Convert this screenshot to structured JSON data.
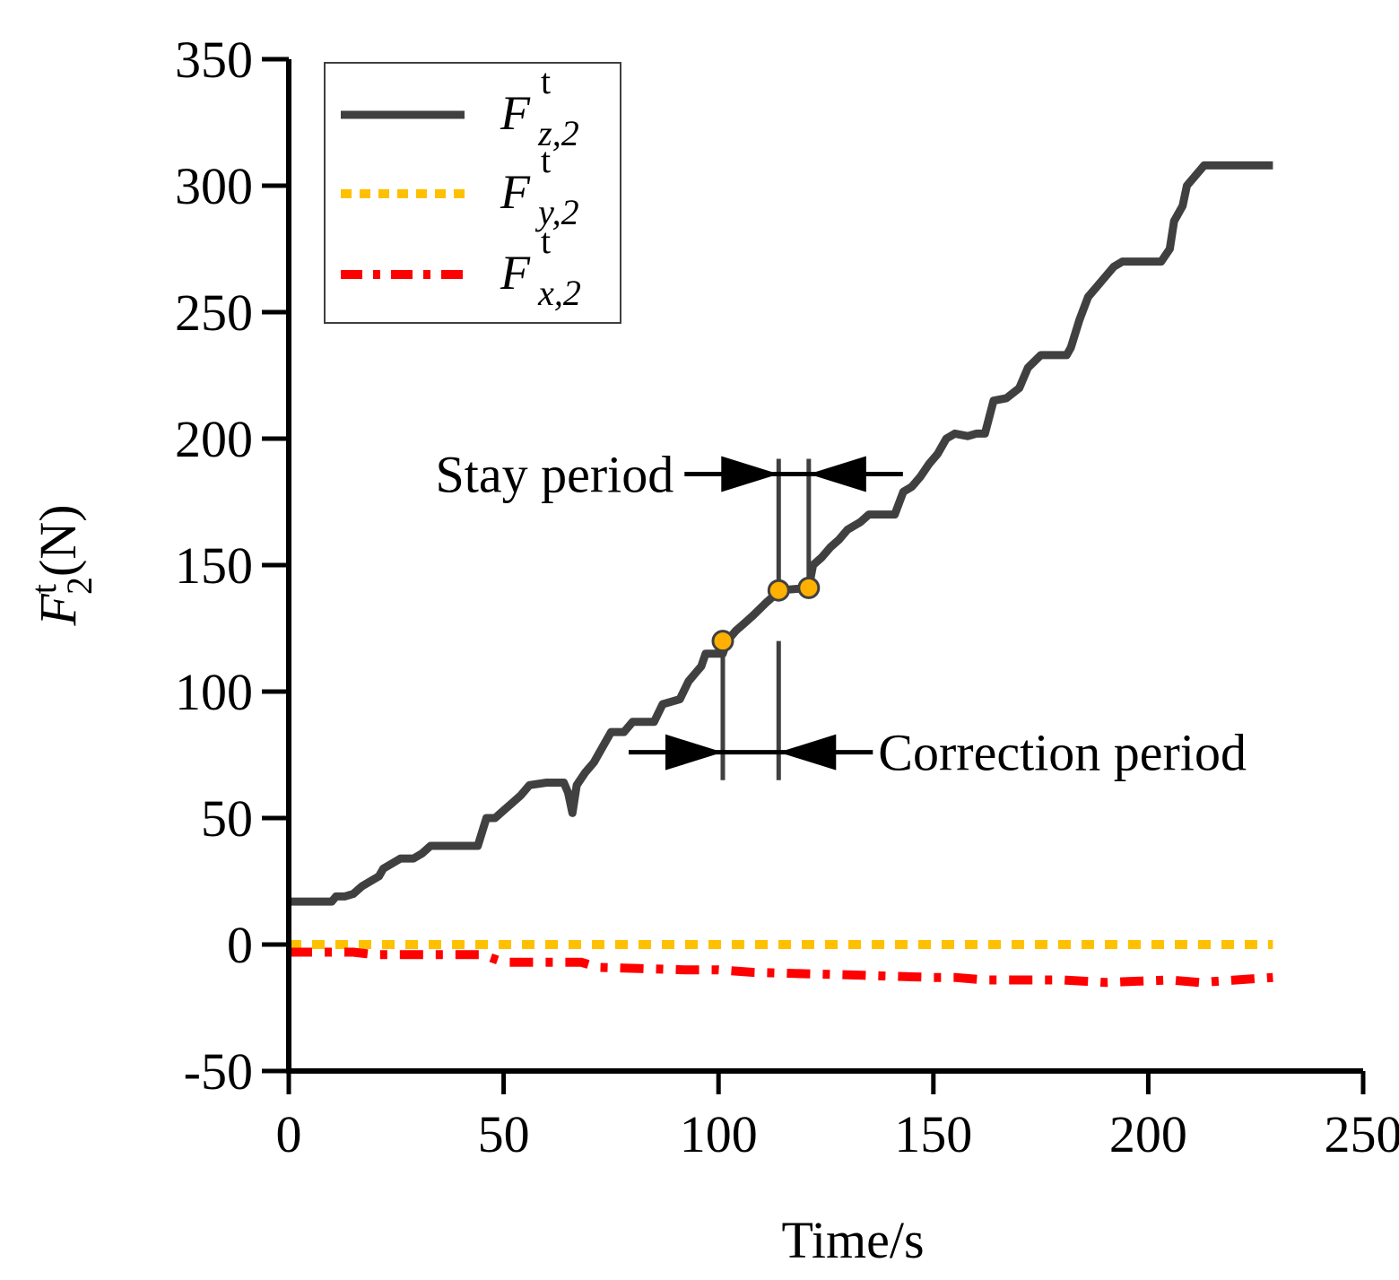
{
  "chart_data": {
    "type": "line",
    "xlabel": "Time/s",
    "ylabel": {
      "main": "F",
      "sup": "t",
      "sub": "2",
      "unit": "(N)"
    },
    "xlim": [
      0,
      250
    ],
    "ylim": [
      -50,
      350
    ],
    "xticks": [
      0,
      50,
      100,
      150,
      200,
      250
    ],
    "yticks": [
      -50,
      0,
      50,
      100,
      150,
      200,
      250,
      300,
      350
    ],
    "grid": false,
    "legend_position": "top-left",
    "series": [
      {
        "name": "F_z,2",
        "label": {
          "main": "F",
          "sup": "t",
          "sub": "z,2"
        },
        "color": "#404040",
        "style": "solid",
        "points": [
          [
            0,
            17
          ],
          [
            10,
            17
          ],
          [
            11,
            19
          ],
          [
            13,
            19
          ],
          [
            15,
            20
          ],
          [
            17,
            23
          ],
          [
            19,
            25
          ],
          [
            21,
            27
          ],
          [
            22,
            30
          ],
          [
            24,
            32
          ],
          [
            26,
            34
          ],
          [
            29,
            34
          ],
          [
            31,
            36
          ],
          [
            33,
            39
          ],
          [
            44,
            39
          ],
          [
            46,
            50
          ],
          [
            48,
            50
          ],
          [
            50,
            53
          ],
          [
            52,
            56
          ],
          [
            54,
            59
          ],
          [
            56,
            63
          ],
          [
            60,
            64
          ],
          [
            64,
            64
          ],
          [
            65,
            60
          ],
          [
            66,
            52
          ],
          [
            67,
            63
          ],
          [
            69,
            68
          ],
          [
            71,
            72
          ],
          [
            73,
            78
          ],
          [
            75,
            84
          ],
          [
            78,
            84
          ],
          [
            80,
            88
          ],
          [
            85,
            88
          ],
          [
            87,
            95
          ],
          [
            89,
            96
          ],
          [
            91,
            97
          ],
          [
            93,
            104
          ],
          [
            95,
            108
          ],
          [
            96,
            110
          ],
          [
            97,
            115
          ],
          [
            101,
            115
          ],
          [
            102,
            120
          ],
          [
            104,
            124
          ],
          [
            106,
            127
          ],
          [
            108,
            130
          ],
          [
            111,
            135
          ],
          [
            113,
            138
          ],
          [
            114,
            140
          ],
          [
            121,
            141
          ],
          [
            122,
            150
          ],
          [
            124,
            153
          ],
          [
            126,
            157
          ],
          [
            128,
            160
          ],
          [
            130,
            164
          ],
          [
            133,
            167
          ],
          [
            135,
            170
          ],
          [
            141,
            170
          ],
          [
            143,
            179
          ],
          [
            145,
            181
          ],
          [
            147,
            185
          ],
          [
            149,
            190
          ],
          [
            151,
            194
          ],
          [
            153,
            200
          ],
          [
            155,
            202
          ],
          [
            158,
            201
          ],
          [
            160,
            202
          ],
          [
            162,
            202
          ],
          [
            164,
            215
          ],
          [
            167,
            216
          ],
          [
            170,
            220
          ],
          [
            172,
            228
          ],
          [
            175,
            233
          ],
          [
            181,
            233
          ],
          [
            182,
            236
          ],
          [
            184,
            247
          ],
          [
            186,
            256
          ],
          [
            188,
            260
          ],
          [
            190,
            264
          ],
          [
            192,
            268
          ],
          [
            194,
            270
          ],
          [
            203,
            270
          ],
          [
            205,
            275
          ],
          [
            206,
            286
          ],
          [
            208,
            292
          ],
          [
            209,
            300
          ],
          [
            211,
            304
          ],
          [
            213,
            308
          ],
          [
            221,
            308
          ],
          [
            229,
            308
          ]
        ]
      },
      {
        "name": "F_y,2",
        "label": {
          "main": "F",
          "sup": "t",
          "sub": "y,2"
        },
        "color": "#FFC000",
        "style": "dashed",
        "points": [
          [
            0,
            0
          ],
          [
            229,
            0
          ]
        ]
      },
      {
        "name": "F_x,2",
        "label": {
          "main": "F",
          "sup": "t",
          "sub": "x,2"
        },
        "color": "#FF0000",
        "style": "dashdot",
        "points": [
          [
            0,
            -3
          ],
          [
            15,
            -3
          ],
          [
            20,
            -4
          ],
          [
            45,
            -4
          ],
          [
            50,
            -7
          ],
          [
            68,
            -7
          ],
          [
            72,
            -9
          ],
          [
            92,
            -10
          ],
          [
            100,
            -10
          ],
          [
            108,
            -11
          ],
          [
            130,
            -12
          ],
          [
            150,
            -13
          ],
          [
            155,
            -13
          ],
          [
            162,
            -14
          ],
          [
            180,
            -14
          ],
          [
            190,
            -15
          ],
          [
            205,
            -14
          ],
          [
            212,
            -15
          ],
          [
            229,
            -13
          ]
        ]
      }
    ],
    "markers": [
      {
        "x": 101,
        "y": 120,
        "color": "#FFB000"
      },
      {
        "x": 114,
        "y": 140,
        "color": "#FFB000"
      },
      {
        "x": 121,
        "y": 141,
        "color": "#FFB000"
      }
    ],
    "annotations": [
      {
        "text": "Stay period",
        "bracket": [
          114,
          121
        ],
        "y": 186,
        "vline_range": [
          138,
          192
        ]
      },
      {
        "text": "Correction period",
        "bracket": [
          101,
          114
        ],
        "y": 76,
        "vline_range": [
          65,
          120
        ]
      }
    ]
  }
}
